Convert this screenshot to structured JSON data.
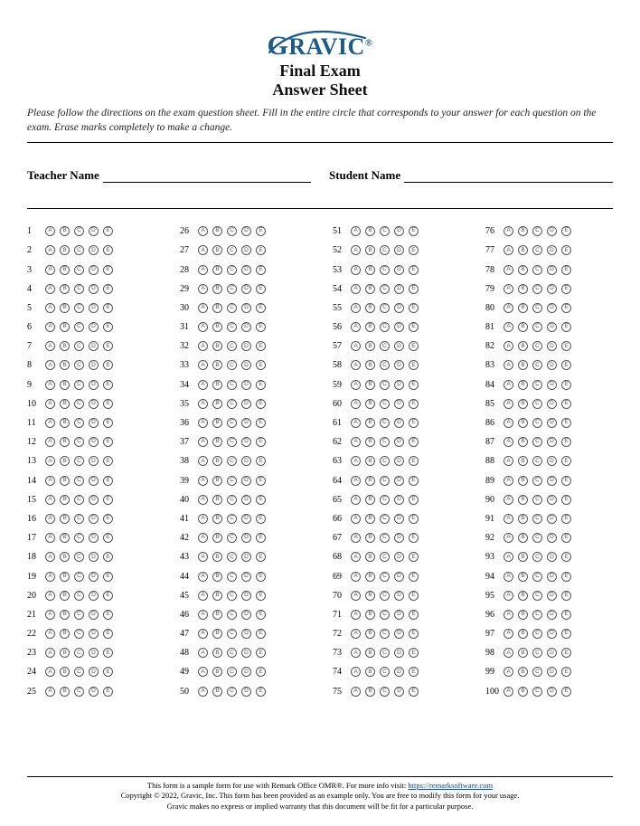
{
  "logo": {
    "text_prefix": "G",
    "text_rest": "RAVIC",
    "registered": "®"
  },
  "title1": "Final Exam",
  "title2": "Answer Sheet",
  "instructions": "Please follow the directions on the exam question sheet. Fill in the entire circle that corresponds to your answer for each question on the exam. Erase marks completely to make a change.",
  "teacher_label": "Teacher Name",
  "student_label": "Student Name",
  "options": [
    "A",
    "B",
    "C",
    "D",
    "E"
  ],
  "columns": 4,
  "questions_per_column": 25,
  "total_questions": 100,
  "footer": {
    "line1_a": "This form is a sample form for use with Remark Office OMR®. For more info visit: ",
    "line1_link": "https://remarksoftware.com",
    "line2": "Copyright © 2022, Gravic, Inc. This form has been provided as an example only. You are free to modify this form for your usage.",
    "line3": "Gravic makes no express or implied warranty that this document will be fit for a particular purpose."
  },
  "colors": {
    "logo": "#1b5b8a",
    "bubble_border": "#555555",
    "text": "#000000",
    "link": "#0645ad",
    "background": "#ffffff"
  }
}
